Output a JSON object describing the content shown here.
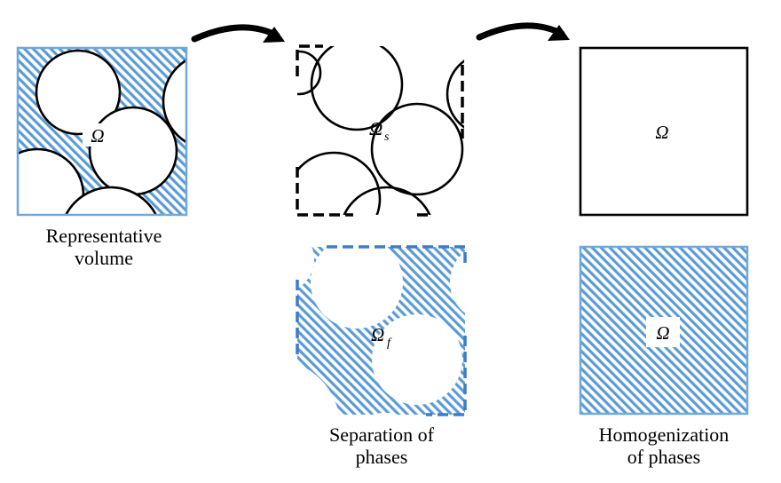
{
  "colors": {
    "hatch": "#5b9bd5",
    "hatch_border": "#6fa8dc",
    "outline": "#000000"
  },
  "labels": {
    "omega": "Ω",
    "omega_s_base": "Ω",
    "omega_s_sub": "s",
    "omega_f_base": "Ω",
    "omega_f_sub": "f",
    "omega_homog_solid": "Ω",
    "omega_homog_fluid": "Ω"
  },
  "captions": {
    "representative_volume": [
      "Representative",
      "volume"
    ],
    "separation_of_phases": [
      "Separation of",
      "phases"
    ],
    "homogenization_of_phases": [
      "Homogenization",
      "of phases"
    ]
  },
  "arrows": [
    "arrow-1",
    "arrow-2"
  ]
}
